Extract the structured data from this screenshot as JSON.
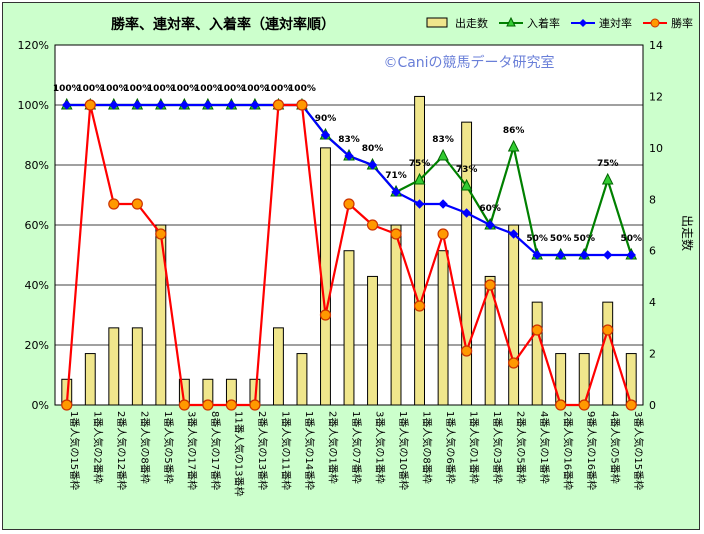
{
  "chart_data": {
    "type": "bar",
    "title": "勝率、連対率、入着率（連対率順）",
    "watermark": "©Caniの競馬データ研究室",
    "y2label": "出走数",
    "ylim": [
      0,
      1.2
    ],
    "y_ticks": [
      "0%",
      "20%",
      "40%",
      "60%",
      "80%",
      "100%",
      "120%"
    ],
    "y2lim": [
      0,
      14
    ],
    "y2_ticks": [
      "0",
      "2",
      "4",
      "6",
      "8",
      "10",
      "12",
      "14"
    ],
    "grid": true,
    "legend_position": "top-right",
    "categories": [
      "1番人気の15番枠",
      "1番人気の2番枠",
      "2番人気の12番枠",
      "2番人気の8番枠",
      "1番人気の5番枠",
      "3番人気の17番枠",
      "8番人気の17番枠",
      "11番人気の13番枠",
      "2番人気の13番枠",
      "1番人気の11番枠",
      "1番人気の14番枠",
      "2番人気の1番枠",
      "1番人気の7番枠",
      "3番人気の1番枠",
      "1番人気の10番枠",
      "1番人気の8番枠",
      "1番人気の6番枠",
      "1番人気の1番枠",
      "1番人気の3番枠",
      "2番人気の5番枠",
      "4番人気の1番枠",
      "2番人気の16番枠",
      "9番人気の16番枠",
      "4番人気の5番枠",
      "3番人気の15番枠"
    ],
    "series": [
      {
        "name": "出走数",
        "type": "bar",
        "axis": "right",
        "color": "#f0e68c",
        "values": [
          1,
          2,
          3,
          3,
          7,
          1,
          1,
          1,
          1,
          3,
          2,
          10,
          6,
          5,
          7,
          12,
          6,
          11,
          5,
          7,
          4,
          2,
          2,
          4,
          2
        ]
      },
      {
        "name": "入着率",
        "type": "line",
        "axis": "left",
        "color": "#008000",
        "values": [
          1,
          1,
          1,
          1,
          1,
          1,
          1,
          1,
          1,
          1,
          1,
          0.9,
          0.83,
          0.8,
          0.71,
          0.75,
          0.83,
          0.73,
          0.6,
          0.86,
          0.5,
          0.5,
          0.5,
          0.75,
          0.5
        ],
        "labels": [
          "100%",
          "100%",
          "100%",
          "100%",
          "100%",
          "100%",
          "100%",
          "100%",
          "100%",
          "100%",
          "100%",
          "90%",
          "83%",
          "80%",
          "71%",
          "75%",
          "83%",
          "73%",
          "60%",
          "86%",
          "50%",
          "50%",
          "50%",
          "75%",
          "50%"
        ]
      },
      {
        "name": "連対率",
        "type": "line",
        "axis": "left",
        "color": "#0000ff",
        "values": [
          1,
          1,
          1,
          1,
          1,
          1,
          1,
          1,
          1,
          1,
          1,
          0.9,
          0.83,
          0.8,
          0.71,
          0.67,
          0.67,
          0.64,
          0.6,
          0.57,
          0.5,
          0.5,
          0.5,
          0.5,
          0.5
        ]
      },
      {
        "name": "勝率",
        "type": "line",
        "axis": "left",
        "color": "#ff0000",
        "values": [
          0,
          1,
          0.67,
          0.67,
          0.57,
          0,
          0,
          0,
          0,
          1,
          1,
          0.3,
          0.67,
          0.6,
          0.57,
          0.33,
          0.57,
          0.18,
          0.4,
          0.14,
          0.25,
          0,
          0,
          0.25,
          0
        ]
      }
    ]
  }
}
